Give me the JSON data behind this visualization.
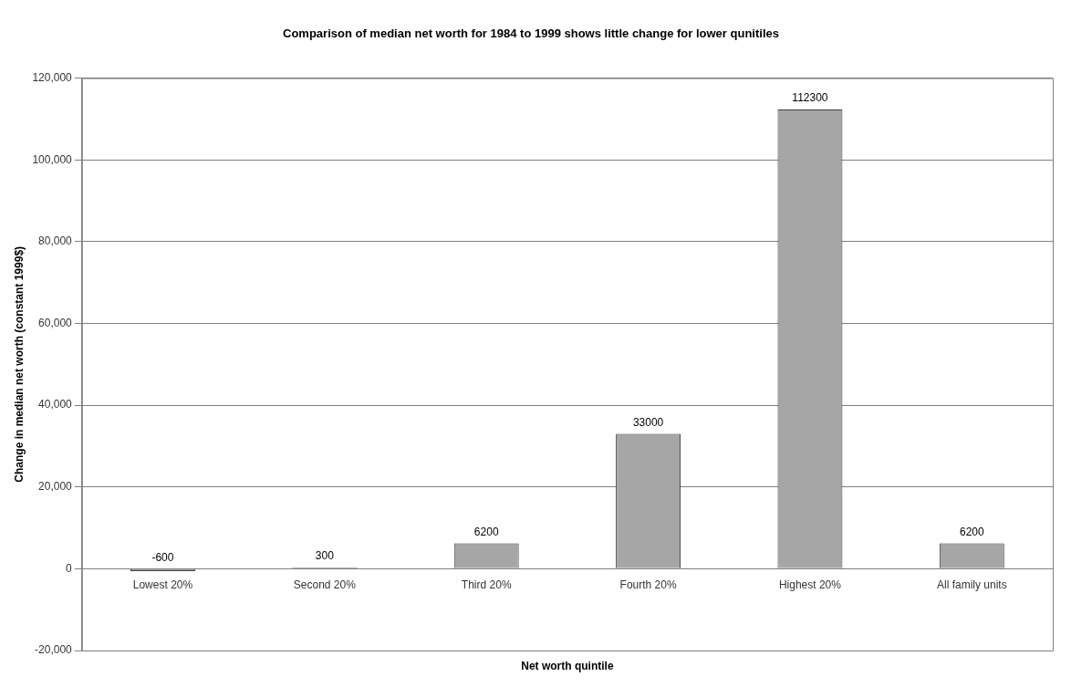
{
  "chart_data": {
    "type": "bar",
    "title": "Comparison of median net worth for 1984 to 1999 shows little change for lower qunitiles",
    "xlabel": "Net worth quintile",
    "ylabel": "Change in median net worth (constant 1999$)",
    "categories": [
      "Lowest 20%",
      "Second 20%",
      "Third 20%",
      "Fourth 20%",
      "Highest 20%",
      "All family units"
    ],
    "values": [
      -600,
      300,
      6200,
      33000,
      112300,
      6200
    ],
    "color": "#a6a6a6",
    "ylim": [
      -20000,
      120000
    ],
    "yticks": [
      {
        "value": -20000,
        "label": "-20,000"
      },
      {
        "value": 0,
        "label": "0"
      },
      {
        "value": 20000,
        "label": "20,000"
      },
      {
        "value": 40000,
        "label": "40,000"
      },
      {
        "value": 60000,
        "label": "60,000"
      },
      {
        "value": 80000,
        "label": "80,000"
      },
      {
        "value": 100000,
        "label": "100,000"
      },
      {
        "value": 120000,
        "label": "120,000"
      }
    ],
    "grid": "y",
    "legend": false,
    "data_labels": true
  }
}
